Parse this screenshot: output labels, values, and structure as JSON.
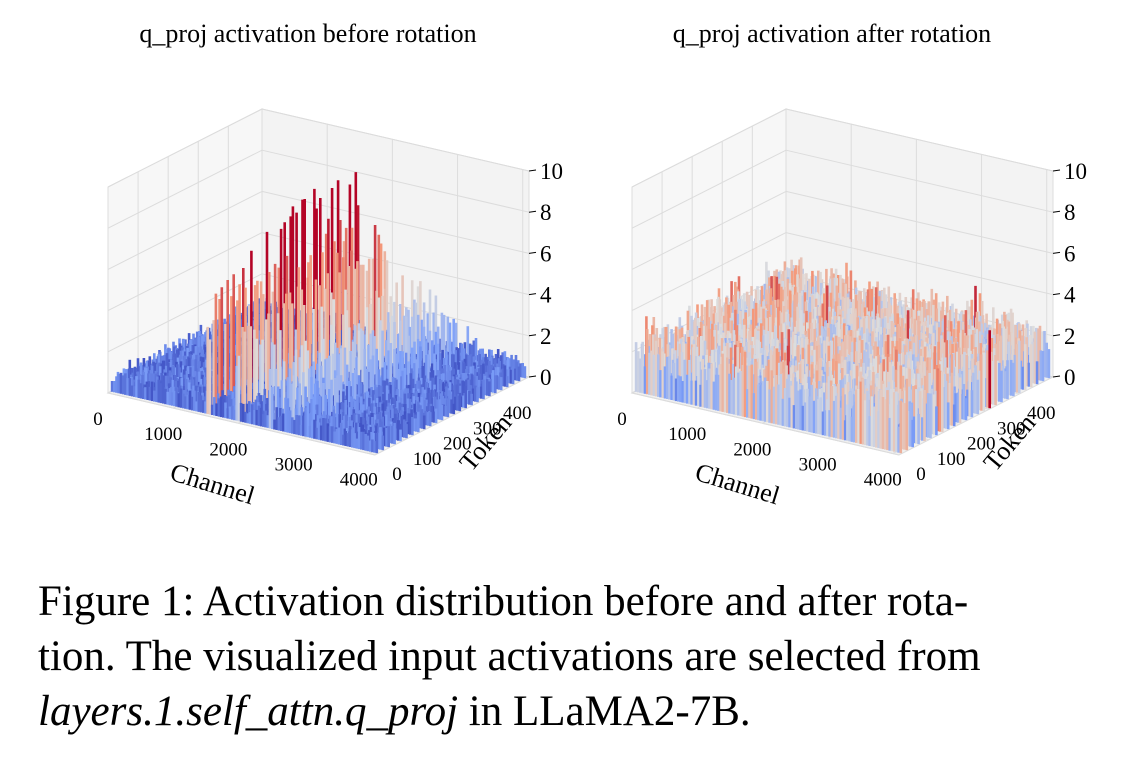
{
  "chart_data": [
    {
      "type": "surface3d",
      "title": "q_proj activation before rotation",
      "xlabel": "Channel",
      "ylabel": "Token",
      "zlabel": "",
      "xlim": [
        0,
        4096
      ],
      "ylim": [
        0,
        512
      ],
      "zlim": [
        0,
        10
      ],
      "xticks": [
        "0",
        "1000",
        "2000",
        "3000",
        "4000"
      ],
      "yticks": [
        "0",
        "100",
        "200",
        "300",
        "400"
      ],
      "zticks": [
        "0",
        "2",
        "4",
        "6",
        "8",
        "10"
      ],
      "colormap": "coolwarm",
      "baseline_level": 0.8,
      "outlier_channels": [
        {
          "channel": 1500,
          "max": 9.3
        },
        {
          "channel": 1950,
          "max": 6.5
        },
        {
          "channel": 2450,
          "max": 4.5
        },
        {
          "channel": 2700,
          "max": 3.8
        },
        {
          "channel": 3000,
          "max": 3.0
        },
        {
          "channel": 3300,
          "max": 2.2
        }
      ]
    },
    {
      "type": "surface3d",
      "title": "q_proj activation after rotation",
      "xlabel": "Channel",
      "ylabel": "Token",
      "zlabel": "",
      "xlim": [
        0,
        4096
      ],
      "ylim": [
        0,
        512
      ],
      "zlim": [
        0,
        10
      ],
      "xticks": [
        "0",
        "1000",
        "2000",
        "3000",
        "4000"
      ],
      "yticks": [
        "0",
        "100",
        "200",
        "300",
        "400"
      ],
      "zticks": [
        "0",
        "2",
        "4",
        "6",
        "8",
        "10"
      ],
      "colormap": "coolwarm",
      "baseline_level": 1.8,
      "max_value": 4.5
    }
  ],
  "caption": {
    "line1": "Figure 1: Activation distribution before and after rota-",
    "line2": "tion. The visualized input activations are selected from",
    "line3_italic": "layers.1.self_attn.q_proj",
    "line3_rest": " in LLaMA2-7B."
  }
}
